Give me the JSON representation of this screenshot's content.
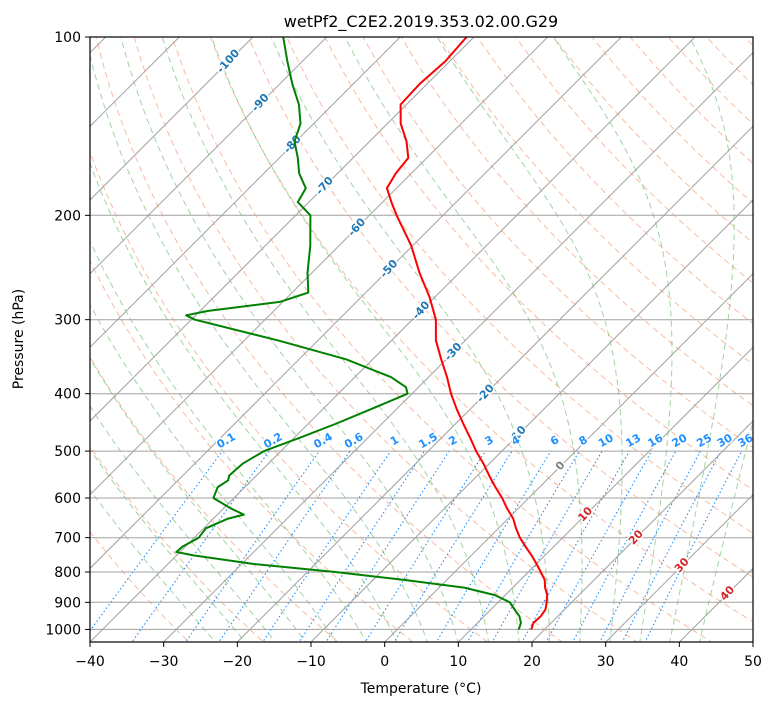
{
  "colors": {
    "temperature": "#ff0000",
    "dewpoint": "#008000",
    "isotherm": "#a0a0a0",
    "isobar": "#a0a0a0",
    "dry_adiabat": "#f4a582",
    "moist_adiabat": "#2ca02c",
    "mixing_ratio": "#1e90ff",
    "isotherm_label": "#1f77b4",
    "mixing_label": "#1e90ff",
    "warm_isotherm_label": "#d62728",
    "zero_label": "#808080"
  },
  "chart_data": {
    "type": "line",
    "title": "wetPf2_C2E2.2019.353.02.00.G29",
    "xlabel": "Temperature (°C)",
    "ylabel": "Pressure (hPa)",
    "xlim": [
      -40,
      50
    ],
    "ylim": [
      1050,
      100
    ],
    "y_scale": "log",
    "skew": "skew-T",
    "grid": true,
    "x_ticks": [
      "−40",
      "−30",
      "−20",
      "−10",
      "0",
      "10",
      "20",
      "30",
      "40",
      "50"
    ],
    "x_tick_values": [
      -40,
      -30,
      -20,
      -10,
      0,
      10,
      20,
      30,
      40,
      50
    ],
    "y_ticks": [
      "100",
      "200",
      "300",
      "400",
      "500",
      "600",
      "700",
      "800",
      "900",
      "1000"
    ],
    "y_tick_values": [
      100,
      200,
      300,
      400,
      500,
      600,
      700,
      800,
      900,
      1000
    ],
    "series": [
      {
        "key": "temperature",
        "pressure": [
          1000,
          975,
          950,
          925,
          900,
          875,
          850,
          825,
          800,
          775,
          750,
          725,
          700,
          675,
          650,
          625,
          600,
          575,
          550,
          525,
          500,
          475,
          450,
          425,
          400,
          375,
          350,
          325,
          300,
          275,
          250,
          225,
          200,
          190,
          180,
          170,
          160,
          150,
          140,
          130,
          120,
          110,
          100
        ],
        "values": [
          18.2,
          17.6,
          17.7,
          17.4,
          16.6,
          15.7,
          14.4,
          13.3,
          11.7,
          10.0,
          8.2,
          6.2,
          4.2,
          2.4,
          0.7,
          -1.5,
          -3.6,
          -6.0,
          -8.4,
          -10.8,
          -13.5,
          -16.1,
          -18.9,
          -21.8,
          -24.7,
          -27.5,
          -30.7,
          -34.0,
          -36.8,
          -40.7,
          -45.4,
          -50.2,
          -56.3,
          -58.8,
          -61.3,
          -62.1,
          -62.5,
          -65.0,
          -68.2,
          -70.8,
          -71.0,
          -70.6,
          -71.0
        ]
      },
      {
        "key": "dewpoint",
        "pressure": [
          1000,
          975,
          950,
          925,
          900,
          875,
          850,
          825,
          800,
          775,
          750,
          740,
          725,
          700,
          675,
          650,
          640,
          625,
          600,
          575,
          560,
          550,
          525,
          500,
          475,
          450,
          425,
          400,
          390,
          375,
          350,
          325,
          300,
          295,
          290,
          280,
          270,
          250,
          225,
          200,
          190,
          180,
          170,
          160,
          150,
          140,
          130,
          120,
          110,
          100
        ],
        "values": [
          16.5,
          15.9,
          14.8,
          13.2,
          11.6,
          8.6,
          3.4,
          -5.8,
          -16.2,
          -28.5,
          -37.7,
          -40.5,
          -40.4,
          -39.4,
          -39.7,
          -38.0,
          -36.4,
          -39.0,
          -42.8,
          -43.7,
          -43.2,
          -43.7,
          -43.5,
          -42.3,
          -39.3,
          -36.3,
          -33.5,
          -30.6,
          -31.7,
          -35.1,
          -43.6,
          -55.5,
          -69.5,
          -71.3,
          -68.9,
          -60.4,
          -57.8,
          -60.6,
          -63.9,
          -68.0,
          -71.5,
          -72.3,
          -75.2,
          -77.5,
          -80.2,
          -81.8,
          -84.6,
          -88.3,
          -92.0,
          -95.9
        ]
      }
    ],
    "isotherm_labels": [
      "-100",
      "-90",
      "-80",
      "-70",
      "-60",
      "-50",
      "-40",
      "-30",
      "-20",
      "-10"
    ],
    "isotherm_label_values": [
      -100,
      -90,
      -80,
      -70,
      -60,
      -50,
      -40,
      -30,
      -20,
      -10
    ],
    "isotherm_zero_label": "0",
    "warm_isotherm_labels": [
      "10",
      "20",
      "30",
      "40"
    ],
    "warm_isotherm_label_values": [
      10,
      20,
      30,
      40
    ],
    "mixing_ratio_labels": [
      "0.1",
      "0.2",
      "0.4",
      "0.6",
      "1",
      "1.5",
      "2",
      "3",
      "4",
      "6",
      "8",
      "10",
      "13",
      "16",
      "20",
      "25",
      "30",
      "36"
    ],
    "mixing_ratio_values": [
      0.1,
      0.2,
      0.4,
      0.6,
      1,
      1.5,
      2,
      3,
      4,
      6,
      8,
      10,
      13,
      16,
      20,
      25,
      30,
      36
    ],
    "mixing_ratio_label_pressure": 500
  }
}
